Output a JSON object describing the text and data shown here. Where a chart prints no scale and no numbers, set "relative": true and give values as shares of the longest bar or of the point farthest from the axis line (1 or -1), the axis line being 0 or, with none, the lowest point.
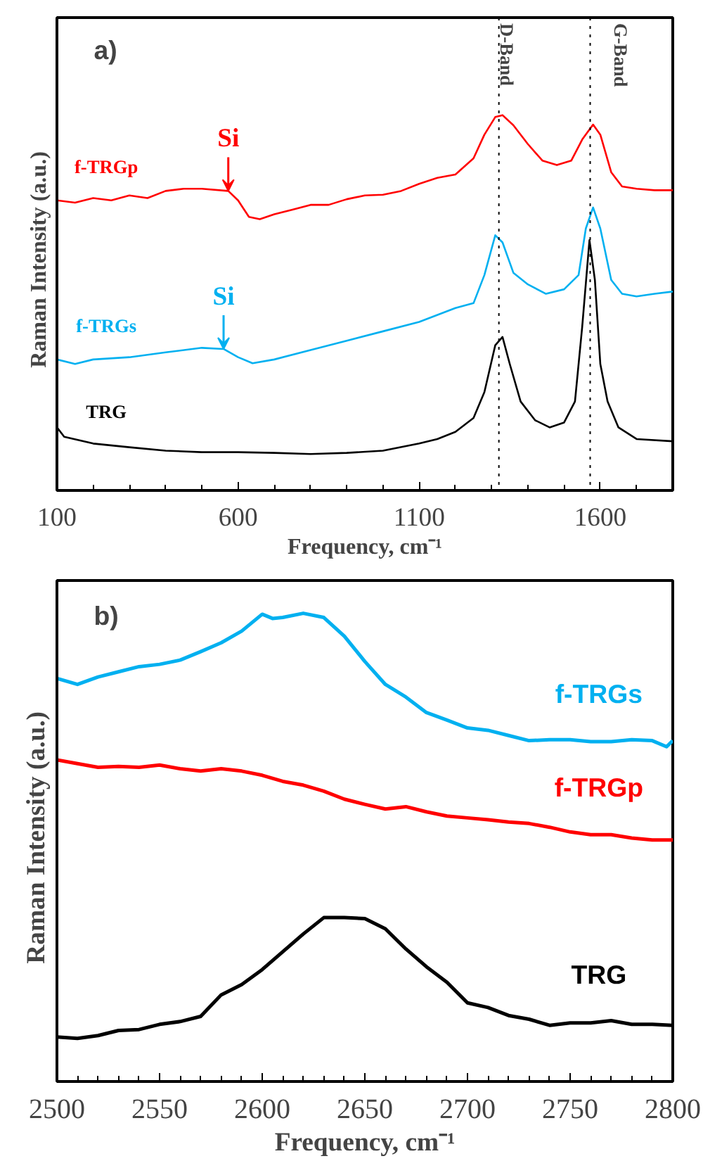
{
  "chart_data": [
    {
      "type": "line",
      "relative": true,
      "xlabel": "Frequency, cm⁻¹",
      "ylabel": "Raman  Intensity  (a.u.)",
      "xlim": [
        100,
        1800
      ],
      "xticks": [
        100,
        600,
        1100,
        1600
      ],
      "annotations": [
        "a)",
        {
          "text": "Si",
          "x": 573,
          "y": 0.798
        },
        {
          "text": "Si",
          "x": 560,
          "y": 0.377
        }
      ],
      "ref_lines": [
        {
          "axis": "x",
          "value": 1320,
          "label": "D-Band",
          "line_style": "dotted"
        },
        {
          "axis": "x",
          "value": 1572,
          "label": "G-Band",
          "line_style": "dotted"
        }
      ],
      "series": [
        {
          "name": "f-TRGp",
          "color": "#ff0000",
          "x": [
            100,
            150,
            200,
            250,
            300,
            350,
            400,
            450,
            500,
            573,
            600,
            630,
            660,
            700,
            750,
            800,
            850,
            900,
            950,
            1000,
            1050,
            1100,
            1150,
            1200,
            1250,
            1280,
            1310,
            1330,
            1360,
            1400,
            1440,
            1480,
            1520,
            1550,
            1580,
            1600,
            1630,
            1660,
            1700,
            1750,
            1800
          ],
          "values": [
            0.773,
            0.767,
            0.779,
            0.773,
            0.786,
            0.779,
            0.798,
            0.804,
            0.804,
            0.798,
            0.773,
            0.729,
            0.723,
            0.736,
            0.748,
            0.761,
            0.761,
            0.776,
            0.786,
            0.788,
            0.798,
            0.817,
            0.833,
            0.842,
            0.885,
            0.948,
            0.995,
            1,
            0.973,
            0.923,
            0.879,
            0.867,
            0.879,
            0.935,
            0.975,
            0.948,
            0.848,
            0.81,
            0.804,
            0.8,
            0.8
          ]
        },
        {
          "name": "f-TRGs",
          "color": "#00b0f0",
          "x": [
            100,
            150,
            200,
            300,
            400,
            500,
            560,
            600,
            640,
            700,
            800,
            900,
            1000,
            1100,
            1200,
            1250,
            1280,
            1310,
            1330,
            1360,
            1400,
            1450,
            1500,
            1540,
            1560,
            1580,
            1600,
            1630,
            1660,
            1700,
            1750,
            1800
          ],
          "values": [
            0.349,
            0.337,
            0.349,
            0.355,
            0.368,
            0.38,
            0.377,
            0.355,
            0.339,
            0.349,
            0.374,
            0.399,
            0.424,
            0.449,
            0.486,
            0.499,
            0.574,
            0.68,
            0.661,
            0.58,
            0.549,
            0.524,
            0.536,
            0.574,
            0.698,
            0.754,
            0.698,
            0.561,
            0.524,
            0.517,
            0.524,
            0.53
          ]
        },
        {
          "name": "TRG",
          "color": "#000000",
          "x": [
            100,
            120,
            200,
            300,
            400,
            500,
            600,
            700,
            800,
            900,
            1000,
            1100,
            1150,
            1200,
            1250,
            1280,
            1310,
            1330,
            1350,
            1380,
            1420,
            1460,
            1500,
            1530,
            1550,
            1570,
            1585,
            1600,
            1620,
            1650,
            1700,
            1800
          ],
          "values": [
            0.168,
            0.143,
            0.125,
            0.115,
            0.106,
            0.102,
            0.102,
            0.1,
            0.097,
            0.1,
            0.106,
            0.125,
            0.137,
            0.156,
            0.193,
            0.262,
            0.387,
            0.409,
            0.337,
            0.237,
            0.187,
            0.168,
            0.181,
            0.237,
            0.436,
            0.667,
            0.561,
            0.337,
            0.237,
            0.168,
            0.137,
            0.131
          ]
        }
      ]
    },
    {
      "type": "line",
      "relative": true,
      "xlabel": "Frequency, cm⁻¹",
      "ylabel": "Raman  Intensity  (a.u.)",
      "xlim": [
        2500,
        2800
      ],
      "xticks": [
        2500,
        2550,
        2600,
        2650,
        2700,
        2750,
        2800
      ],
      "annotations": [
        "b)"
      ],
      "series": [
        {
          "name": "f-TRGs",
          "color": "#00b0f0",
          "x": [
            2500,
            2510,
            2520,
            2530,
            2540,
            2550,
            2560,
            2570,
            2580,
            2590,
            2600,
            2605,
            2610,
            2620,
            2630,
            2640,
            2650,
            2660,
            2670,
            2680,
            2690,
            2700,
            2710,
            2720,
            2730,
            2740,
            2750,
            2760,
            2770,
            2780,
            2790,
            2797,
            2800
          ],
          "values": [
            0.861,
            0.848,
            0.864,
            0.875,
            0.886,
            0.891,
            0.9,
            0.918,
            0.937,
            0.962,
            0.998,
            0.989,
            0.991,
            1,
            0.991,
            0.951,
            0.897,
            0.848,
            0.821,
            0.788,
            0.772,
            0.755,
            0.75,
            0.739,
            0.728,
            0.73,
            0.73,
            0.726,
            0.726,
            0.73,
            0.728,
            0.715,
            0.728
          ]
        },
        {
          "name": "f-TRGp",
          "color": "#ff0000",
          "x": [
            2500,
            2510,
            2520,
            2530,
            2540,
            2550,
            2560,
            2570,
            2580,
            2590,
            2600,
            2610,
            2620,
            2630,
            2640,
            2650,
            2660,
            2670,
            2680,
            2690,
            2700,
            2710,
            2720,
            2730,
            2740,
            2750,
            2760,
            2770,
            2780,
            2790,
            2800
          ],
          "values": [
            0.687,
            0.679,
            0.671,
            0.673,
            0.671,
            0.676,
            0.668,
            0.663,
            0.668,
            0.663,
            0.654,
            0.641,
            0.633,
            0.62,
            0.603,
            0.592,
            0.582,
            0.587,
            0.576,
            0.567,
            0.563,
            0.559,
            0.554,
            0.551,
            0.543,
            0.533,
            0.527,
            0.527,
            0.52,
            0.516,
            0.516
          ]
        },
        {
          "name": "TRG",
          "color": "#000000",
          "x": [
            2500,
            2510,
            2520,
            2530,
            2540,
            2550,
            2560,
            2570,
            2580,
            2590,
            2600,
            2610,
            2620,
            2630,
            2640,
            2650,
            2660,
            2670,
            2680,
            2690,
            2700,
            2710,
            2720,
            2730,
            2740,
            2750,
            2760,
            2770,
            2780,
            2790,
            2800
          ],
          "values": [
            0.095,
            0.092,
            0.098,
            0.109,
            0.111,
            0.122,
            0.128,
            0.139,
            0.185,
            0.207,
            0.239,
            0.277,
            0.315,
            0.35,
            0.35,
            0.348,
            0.326,
            0.283,
            0.245,
            0.212,
            0.168,
            0.158,
            0.141,
            0.133,
            0.12,
            0.125,
            0.125,
            0.13,
            0.122,
            0.122,
            0.12
          ]
        }
      ]
    }
  ]
}
